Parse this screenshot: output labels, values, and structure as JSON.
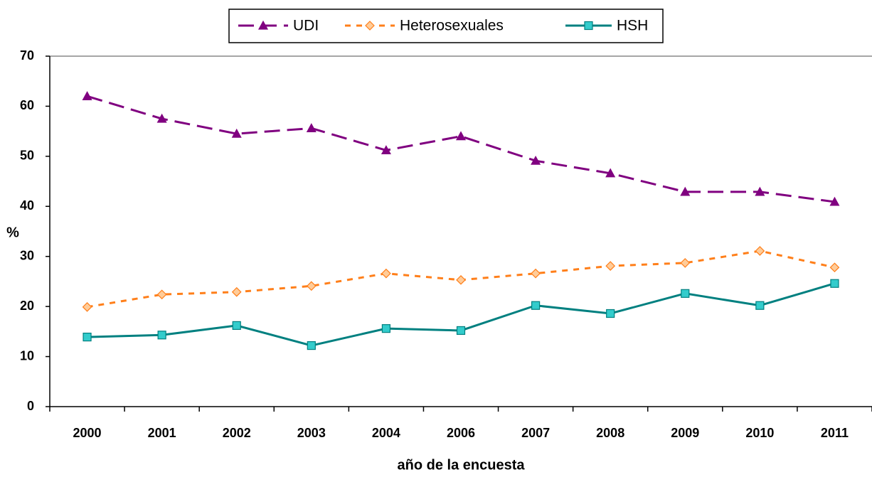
{
  "chart_data": {
    "type": "line",
    "y_label": "%",
    "x_label": "año de la encuesta",
    "categories": [
      "2000",
      "2001",
      "2002",
      "2003",
      "2004",
      "2006",
      "2007",
      "2008",
      "2009",
      "2010",
      "2011"
    ],
    "series": [
      {
        "name": "UDI",
        "color": "#800080",
        "marker_fill": "#800080",
        "line_style": "dashed",
        "marker": "triangle",
        "values": [
          62,
          57.5,
          54.5,
          55.6,
          51.2,
          54,
          49.1,
          46.6,
          42.9,
          42.9,
          40.9
        ]
      },
      {
        "name": "Heterosexuales",
        "color": "#ff7f1a",
        "marker_fill": "#ffcc99",
        "line_style": "dotted",
        "marker": "diamond",
        "values": [
          19.9,
          22.4,
          22.9,
          24.1,
          26.6,
          25.3,
          26.6,
          28.1,
          28.7,
          31.1,
          27.8
        ]
      },
      {
        "name": "HSH",
        "color": "#008080",
        "marker_fill": "#33cccc",
        "line_style": "solid",
        "marker": "square",
        "values": [
          13.9,
          14.3,
          16.2,
          12.2,
          15.6,
          15.2,
          20.2,
          18.6,
          22.6,
          20.2,
          24.6
        ]
      }
    ],
    "ylim": [
      0,
      70
    ],
    "yticks": [
      0,
      10,
      20,
      30,
      40,
      50,
      60,
      70
    ],
    "grid": false,
    "legend": "top"
  }
}
